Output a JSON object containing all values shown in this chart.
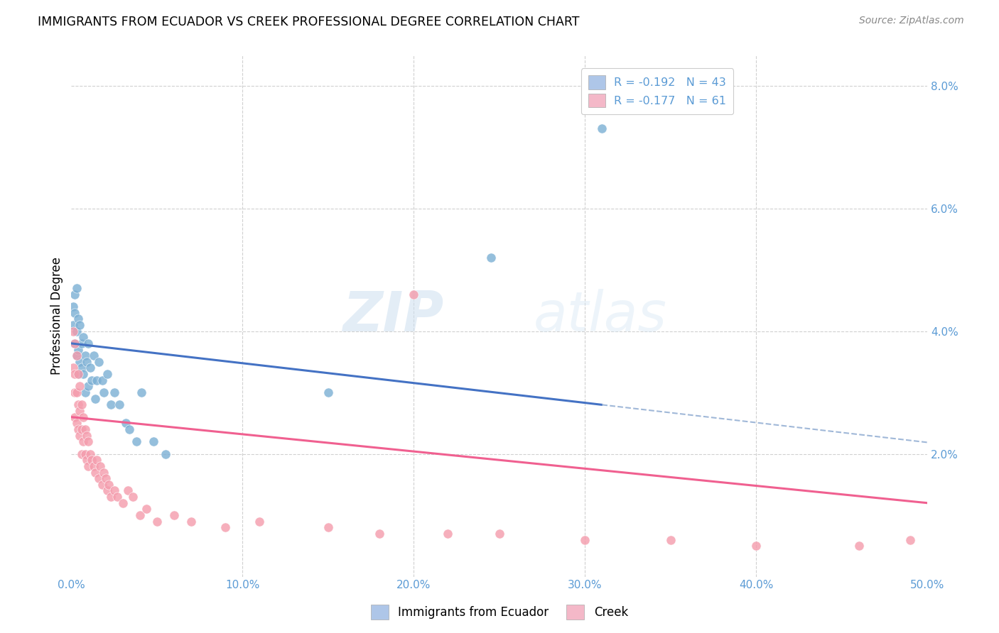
{
  "title": "IMMIGRANTS FROM ECUADOR VS CREEK PROFESSIONAL DEGREE CORRELATION CHART",
  "source": "Source: ZipAtlas.com",
  "ylabel": "Professional Degree",
  "xlim": [
    0.0,
    0.5
  ],
  "ylim": [
    0.0,
    0.085
  ],
  "xticks": [
    0.0,
    0.1,
    0.2,
    0.3,
    0.4,
    0.5
  ],
  "xticklabels": [
    "0.0%",
    "10.0%",
    "20.0%",
    "30.0%",
    "40.0%",
    "50.0%"
  ],
  "yticklabels_right": [
    "",
    "2.0%",
    "4.0%",
    "6.0%",
    "8.0%"
  ],
  "yticks_right": [
    0.0,
    0.02,
    0.04,
    0.06,
    0.08
  ],
  "legend_entry1": "R = -0.192   N = 43",
  "legend_entry2": "R = -0.177   N = 61",
  "legend_color1": "#aec6e8",
  "legend_color2": "#f4b8c8",
  "color_ecuador": "#7bafd4",
  "color_creek": "#f49bac",
  "trendline_ecuador_color": "#4472c4",
  "trendline_creek_color": "#f06090",
  "trendline_dashed_color": "#a0b8d8",
  "watermark_zip": "ZIP",
  "watermark_atlas": "atlas",
  "ecuador_x": [
    0.001,
    0.001,
    0.002,
    0.002,
    0.002,
    0.003,
    0.003,
    0.003,
    0.004,
    0.004,
    0.004,
    0.005,
    0.005,
    0.006,
    0.006,
    0.007,
    0.007,
    0.008,
    0.008,
    0.009,
    0.01,
    0.01,
    0.011,
    0.012,
    0.013,
    0.014,
    0.015,
    0.016,
    0.018,
    0.019,
    0.021,
    0.023,
    0.025,
    0.028,
    0.032,
    0.034,
    0.038,
    0.041,
    0.048,
    0.055,
    0.15,
    0.245,
    0.31
  ],
  "ecuador_y": [
    0.044,
    0.041,
    0.046,
    0.038,
    0.043,
    0.047,
    0.036,
    0.04,
    0.042,
    0.037,
    0.033,
    0.041,
    0.035,
    0.038,
    0.034,
    0.039,
    0.033,
    0.036,
    0.03,
    0.035,
    0.038,
    0.031,
    0.034,
    0.032,
    0.036,
    0.029,
    0.032,
    0.035,
    0.032,
    0.03,
    0.033,
    0.028,
    0.03,
    0.028,
    0.025,
    0.024,
    0.022,
    0.03,
    0.022,
    0.02,
    0.03,
    0.052,
    0.073
  ],
  "creek_x": [
    0.001,
    0.001,
    0.002,
    0.002,
    0.002,
    0.002,
    0.003,
    0.003,
    0.003,
    0.004,
    0.004,
    0.004,
    0.005,
    0.005,
    0.005,
    0.006,
    0.006,
    0.006,
    0.007,
    0.007,
    0.008,
    0.008,
    0.009,
    0.009,
    0.01,
    0.01,
    0.011,
    0.012,
    0.013,
    0.014,
    0.015,
    0.016,
    0.017,
    0.018,
    0.019,
    0.02,
    0.021,
    0.022,
    0.023,
    0.025,
    0.027,
    0.03,
    0.033,
    0.036,
    0.04,
    0.044,
    0.05,
    0.06,
    0.07,
    0.09,
    0.11,
    0.15,
    0.18,
    0.2,
    0.22,
    0.25,
    0.3,
    0.35,
    0.4,
    0.46,
    0.49
  ],
  "creek_y": [
    0.04,
    0.034,
    0.038,
    0.033,
    0.03,
    0.026,
    0.036,
    0.03,
    0.025,
    0.033,
    0.028,
    0.024,
    0.031,
    0.027,
    0.023,
    0.028,
    0.024,
    0.02,
    0.026,
    0.022,
    0.024,
    0.02,
    0.023,
    0.019,
    0.022,
    0.018,
    0.02,
    0.019,
    0.018,
    0.017,
    0.019,
    0.016,
    0.018,
    0.015,
    0.017,
    0.016,
    0.014,
    0.015,
    0.013,
    0.014,
    0.013,
    0.012,
    0.014,
    0.013,
    0.01,
    0.011,
    0.009,
    0.01,
    0.009,
    0.008,
    0.009,
    0.008,
    0.007,
    0.046,
    0.007,
    0.007,
    0.006,
    0.006,
    0.005,
    0.005,
    0.006
  ],
  "ec_trend_x0": 0.0,
  "ec_trend_y0": 0.038,
  "ec_trend_x1": 0.31,
  "ec_trend_y1": 0.028,
  "ec_solid_xend": 0.31,
  "ec_dashed_xend": 0.5,
  "cr_trend_x0": 0.0,
  "cr_trend_y0": 0.026,
  "cr_trend_x1": 0.5,
  "cr_trend_y1": 0.012
}
